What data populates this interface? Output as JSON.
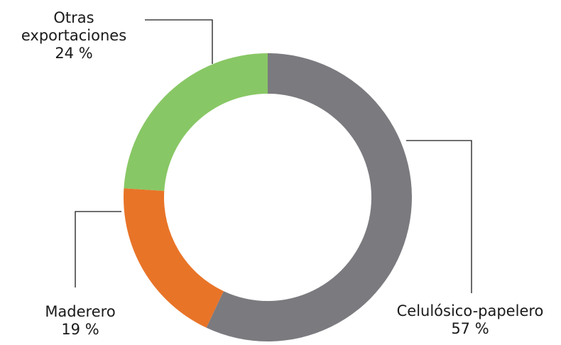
{
  "chart_data": {
    "type": "pie",
    "variant": "donut",
    "slices": [
      {
        "label": "Celulósico-papelero",
        "value": 57,
        "value_label": "57 %",
        "color": "#7b7a7f"
      },
      {
        "label": "Maderero",
        "value": 19,
        "value_label": "19 %",
        "color": "#e87428"
      },
      {
        "label": "Otras\nexportaciones",
        "value": 24,
        "value_label": "24 %",
        "color": "#88c765"
      }
    ],
    "start_angle_deg": 0,
    "direction": "clockwise",
    "legend": "none"
  }
}
